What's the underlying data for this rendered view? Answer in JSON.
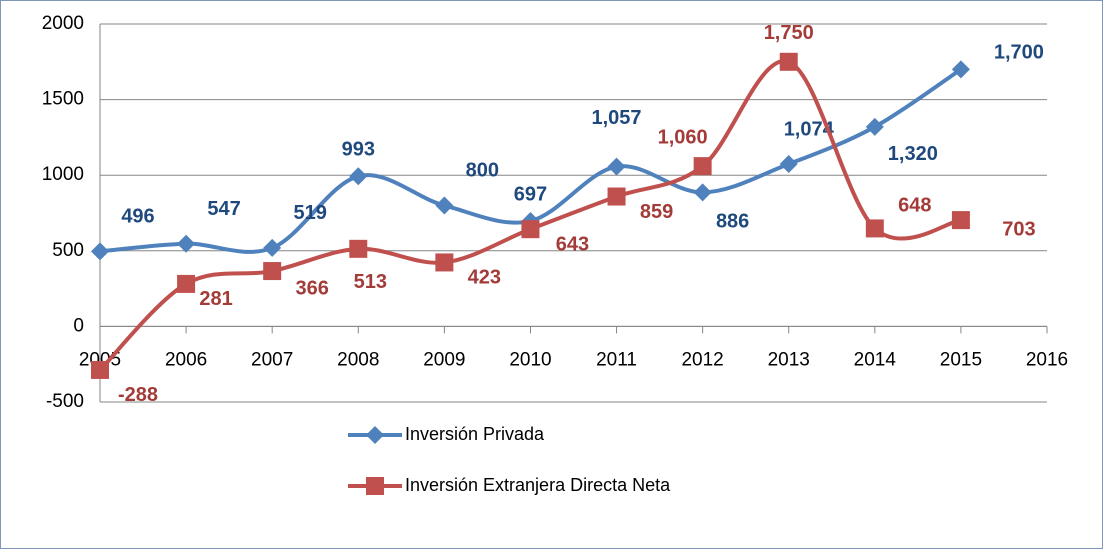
{
  "chart_data": {
    "type": "line",
    "x": [
      2005,
      2006,
      2007,
      2008,
      2009,
      2010,
      2011,
      2012,
      2013,
      2014,
      2015
    ],
    "series": [
      {
        "name": "Inversión Privada",
        "color": "#4f81bd",
        "label_color": "#1f497d",
        "values": [
          496,
          547,
          519,
          993,
          800,
          697,
          1057,
          886,
          1074,
          1320,
          1700
        ],
        "value_labels": [
          "496",
          "547",
          "519",
          "993",
          "800",
          "697",
          "1,057",
          "886",
          "1,074",
          "1,320",
          "1,700"
        ]
      },
      {
        "name": "Inversión Extranjera Directa Neta",
        "color": "#c0504d",
        "label_color": "#a33b38",
        "values": [
          -288,
          281,
          366,
          513,
          423,
          643,
          859,
          1060,
          1750,
          648,
          703
        ],
        "value_labels": [
          "-288",
          "281",
          "366",
          "513",
          "423",
          "643",
          "859",
          "1,060",
          "1,750",
          "648",
          "703"
        ]
      }
    ],
    "xlim": [
      2005,
      2016
    ],
    "xticks": [
      2005,
      2006,
      2007,
      2008,
      2009,
      2010,
      2011,
      2012,
      2013,
      2014,
      2015,
      2016
    ],
    "ylim": [
      -500,
      2000
    ],
    "yticks": [
      -500,
      0,
      500,
      1000,
      1500,
      2000
    ],
    "grid": true,
    "smooth": true,
    "legend": "bottom"
  }
}
